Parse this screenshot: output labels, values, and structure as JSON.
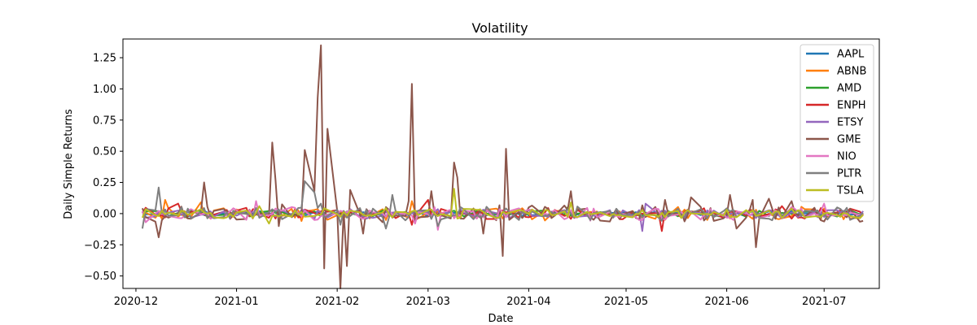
{
  "chart_data": {
    "type": "line",
    "title": "Volatility",
    "xlabel": "Date",
    "ylabel": "Daily Simple Returns",
    "x_start": "2020-12-03",
    "x_end": "2021-07-13",
    "xlim": [
      "2020-11-27",
      "2021-07-18"
    ],
    "ylim": [
      -0.6,
      1.4
    ],
    "xticks": [
      {
        "date": "2020-12-01",
        "label": "2020-12"
      },
      {
        "date": "2021-01-01",
        "label": "2021-01"
      },
      {
        "date": "2021-02-01",
        "label": "2021-02"
      },
      {
        "date": "2021-03-01",
        "label": "2021-03"
      },
      {
        "date": "2021-04-01",
        "label": "2021-04"
      },
      {
        "date": "2021-05-01",
        "label": "2021-05"
      },
      {
        "date": "2021-06-01",
        "label": "2021-06"
      },
      {
        "date": "2021-07-01",
        "label": "2021-07"
      }
    ],
    "yticks": [
      -0.5,
      -0.25,
      0.0,
      0.25,
      0.5,
      0.75,
      1.0,
      1.25
    ],
    "ytick_labels": [
      "−0.50",
      "−0.25",
      "0.00",
      "0.25",
      "0.50",
      "0.75",
      "1.00",
      "1.25"
    ],
    "legend_position": "top-right",
    "grid": false,
    "series": [
      {
        "name": "AAPL",
        "color": "#1f77b4",
        "amp": 0.02,
        "spikes": []
      },
      {
        "name": "ABNB",
        "color": "#ff7f0e",
        "amp": 0.045,
        "spikes": [
          {
            "date": "2020-12-10",
            "value": 0.11
          },
          {
            "date": "2020-12-21",
            "value": 0.09
          },
          {
            "date": "2021-01-21",
            "value": -0.06
          },
          {
            "date": "2021-02-24",
            "value": 0.1
          },
          {
            "date": "2021-05-13",
            "value": -0.05
          }
        ]
      },
      {
        "name": "AMD",
        "color": "#2ca02c",
        "amp": 0.025,
        "spikes": [
          {
            "date": "2021-04-13",
            "value": 0.05
          }
        ]
      },
      {
        "name": "ENPH",
        "color": "#d62728",
        "amp": 0.04,
        "spikes": [
          {
            "date": "2020-12-14",
            "value": 0.08
          },
          {
            "date": "2021-02-24",
            "value": -0.09
          },
          {
            "date": "2021-03-01",
            "value": 0.11
          },
          {
            "date": "2021-05-12",
            "value": -0.14
          },
          {
            "date": "2021-06-18",
            "value": 0.06
          }
        ]
      },
      {
        "name": "ETSY",
        "color": "#9467bd",
        "amp": 0.035,
        "spikes": [
          {
            "date": "2021-05-06",
            "value": -0.14
          },
          {
            "date": "2021-05-07",
            "value": 0.08
          }
        ]
      },
      {
        "name": "GME",
        "color": "#8c564b",
        "amp": 0.06,
        "spikes": [
          {
            "date": "2020-12-08",
            "value": -0.19
          },
          {
            "date": "2020-12-22",
            "value": 0.25
          },
          {
            "date": "2021-01-12",
            "value": 0.57
          },
          {
            "date": "2021-01-13",
            "value": 0.27
          },
          {
            "date": "2021-01-14",
            "value": -0.1
          },
          {
            "date": "2021-01-22",
            "value": 0.51
          },
          {
            "date": "2021-01-25",
            "value": 0.18
          },
          {
            "date": "2021-01-26",
            "value": 0.93
          },
          {
            "date": "2021-01-27",
            "value": 1.35
          },
          {
            "date": "2021-01-28",
            "value": -0.44
          },
          {
            "date": "2021-01-29",
            "value": 0.68
          },
          {
            "date": "2021-02-01",
            "value": 0.02
          },
          {
            "date": "2021-02-02",
            "value": -0.6
          },
          {
            "date": "2021-02-03",
            "value": 0.02
          },
          {
            "date": "2021-02-04",
            "value": -0.42
          },
          {
            "date": "2021-02-05",
            "value": 0.19
          },
          {
            "date": "2021-02-09",
            "value": -0.16
          },
          {
            "date": "2021-02-23",
            "value": 0.1
          },
          {
            "date": "2021-02-24",
            "value": 1.04
          },
          {
            "date": "2021-02-25",
            "value": -0.06
          },
          {
            "date": "2021-03-02",
            "value": 0.18
          },
          {
            "date": "2021-03-09",
            "value": 0.41
          },
          {
            "date": "2021-03-10",
            "value": 0.29
          },
          {
            "date": "2021-03-11",
            "value": -0.04
          },
          {
            "date": "2021-03-18",
            "value": -0.16
          },
          {
            "date": "2021-03-24",
            "value": -0.34
          },
          {
            "date": "2021-03-25",
            "value": 0.52
          },
          {
            "date": "2021-03-26",
            "value": -0.05
          },
          {
            "date": "2021-04-14",
            "value": 0.18
          },
          {
            "date": "2021-05-13",
            "value": 0.11
          },
          {
            "date": "2021-05-21",
            "value": 0.13
          },
          {
            "date": "2021-06-02",
            "value": 0.15
          },
          {
            "date": "2021-06-04",
            "value": -0.12
          },
          {
            "date": "2021-06-09",
            "value": 0.11
          },
          {
            "date": "2021-06-10",
            "value": -0.27
          },
          {
            "date": "2021-06-14",
            "value": 0.12
          },
          {
            "date": "2021-06-21",
            "value": 0.1
          }
        ]
      },
      {
        "name": "NIO",
        "color": "#e377c2",
        "amp": 0.045,
        "spikes": [
          {
            "date": "2020-12-04",
            "value": -0.07
          },
          {
            "date": "2021-01-07",
            "value": 0.1
          },
          {
            "date": "2021-02-25",
            "value": -0.08
          },
          {
            "date": "2021-03-04",
            "value": -0.13
          },
          {
            "date": "2021-07-01",
            "value": 0.08
          }
        ]
      },
      {
        "name": "PLTR",
        "color": "#7f7f7f",
        "amp": 0.05,
        "spikes": [
          {
            "date": "2020-12-03",
            "value": -0.12
          },
          {
            "date": "2020-12-08",
            "value": 0.21
          },
          {
            "date": "2021-01-22",
            "value": 0.26
          },
          {
            "date": "2021-01-25",
            "value": 0.17
          },
          {
            "date": "2021-01-27",
            "value": 0.08
          },
          {
            "date": "2021-02-02",
            "value": -0.09
          },
          {
            "date": "2021-02-16",
            "value": -0.12
          },
          {
            "date": "2021-02-18",
            "value": 0.15
          },
          {
            "date": "2021-03-04",
            "value": -0.1
          },
          {
            "date": "2021-07-09",
            "value": -0.05
          }
        ]
      },
      {
        "name": "TSLA",
        "color": "#bcbd22",
        "amp": 0.035,
        "spikes": [
          {
            "date": "2021-01-08",
            "value": 0.06
          },
          {
            "date": "2021-01-11",
            "value": -0.08
          },
          {
            "date": "2021-03-09",
            "value": 0.2
          },
          {
            "date": "2021-03-10",
            "value": -0.04
          },
          {
            "date": "2021-04-14",
            "value": 0.09
          }
        ]
      }
    ]
  }
}
